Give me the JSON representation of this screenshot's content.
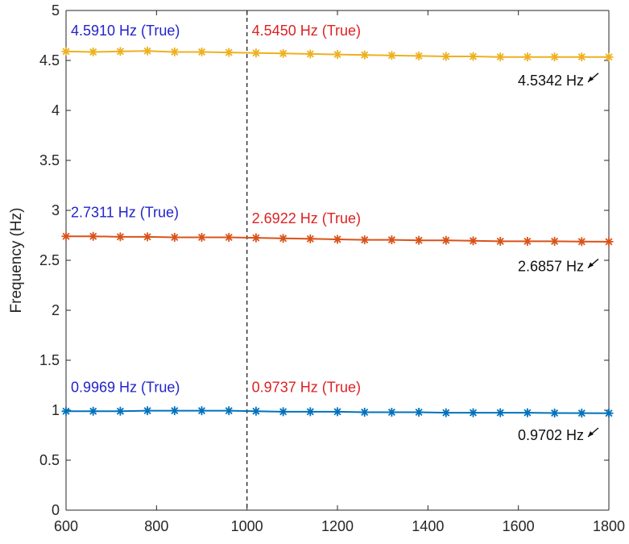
{
  "chart_data": {
    "type": "line",
    "title": "",
    "xlabel": "",
    "ylabel": "Frequency (Hz)",
    "xlim": [
      600,
      1800
    ],
    "ylim": [
      0,
      5
    ],
    "xticks": [
      600,
      800,
      1000,
      1200,
      1400,
      1600,
      1800
    ],
    "yticks": [
      0,
      0.5,
      1,
      1.5,
      2,
      2.5,
      3,
      3.5,
      4,
      4.5,
      5
    ],
    "ytick_labels": [
      "0",
      "0.5",
      "1",
      "1.5",
      "2",
      "2.5",
      "3",
      "3.5",
      "4",
      "4.5",
      "5"
    ],
    "grid": false,
    "vline_x": 1000,
    "x": [
      600,
      660,
      720,
      780,
      840,
      900,
      960,
      1020,
      1080,
      1140,
      1200,
      1260,
      1320,
      1380,
      1440,
      1500,
      1560,
      1620,
      1680,
      1740,
      1800
    ],
    "series": [
      {
        "color": "#EDB120",
        "marker": "asterisk",
        "values": [
          4.59,
          4.585,
          4.59,
          4.595,
          4.585,
          4.585,
          4.58,
          4.575,
          4.57,
          4.565,
          4.56,
          4.555,
          4.55,
          4.545,
          4.54,
          4.54,
          4.535,
          4.535,
          4.535,
          4.535,
          4.534
        ]
      },
      {
        "color": "#D95319",
        "marker": "asterisk",
        "values": [
          2.74,
          2.74,
          2.735,
          2.735,
          2.73,
          2.73,
          2.73,
          2.725,
          2.72,
          2.715,
          2.71,
          2.705,
          2.705,
          2.7,
          2.7,
          2.695,
          2.69,
          2.69,
          2.69,
          2.687,
          2.686
        ]
      },
      {
        "color": "#0072BD",
        "marker": "asterisk",
        "values": [
          0.99,
          0.99,
          0.99,
          0.995,
          0.995,
          0.995,
          0.995,
          0.99,
          0.985,
          0.985,
          0.985,
          0.98,
          0.98,
          0.98,
          0.975,
          0.975,
          0.975,
          0.975,
          0.972,
          0.971,
          0.97
        ]
      }
    ],
    "annotations": [
      {
        "text": "4.5910 Hz (True)",
        "x": 600,
        "y": 4.8,
        "color": "#2323cc"
      },
      {
        "text": "4.5450 Hz (True)",
        "x": 1000,
        "y": 4.8,
        "color": "#dd2222"
      },
      {
        "text": "4.5342 Hz",
        "x": 1800,
        "y": 4.3,
        "color": "#111111",
        "arrow": true
      },
      {
        "text": "2.7311 Hz (True)",
        "x": 600,
        "y": 2.98,
        "color": "#2323cc"
      },
      {
        "text": "2.6922 Hz (True)",
        "x": 1000,
        "y": 2.92,
        "color": "#dd2222"
      },
      {
        "text": "2.6857 Hz",
        "x": 1800,
        "y": 2.44,
        "color": "#111111",
        "arrow": true
      },
      {
        "text": "0.9969 Hz (True)",
        "x": 600,
        "y": 1.23,
        "color": "#2323cc"
      },
      {
        "text": "0.9737 Hz (True)",
        "x": 1000,
        "y": 1.23,
        "color": "#dd2222"
      },
      {
        "text": "0.9702 Hz",
        "x": 1800,
        "y": 0.75,
        "color": "#111111",
        "arrow": true
      }
    ]
  }
}
